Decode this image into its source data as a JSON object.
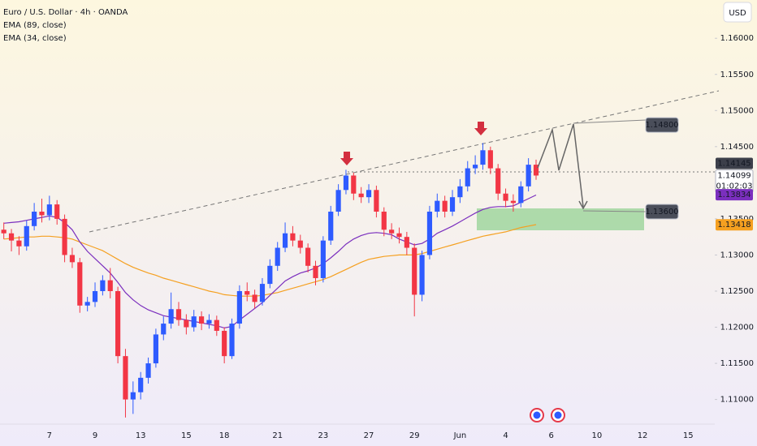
{
  "chart_data": {
    "type": "candlestick",
    "title": "Euro / U.S. Dollar · 4h · OANDA",
    "currency": "USD",
    "up_color": "#2e5bff",
    "down_color": "#f23645",
    "categories": [
      null,
      null,
      null,
      null,
      null,
      null,
      "7",
      null,
      null,
      null,
      null,
      null,
      "9",
      null,
      null,
      null,
      null,
      null,
      "13",
      null,
      null,
      null,
      null,
      null,
      "15",
      null,
      null,
      null,
      null,
      "18",
      null,
      null,
      null,
      null,
      null,
      null,
      "21",
      null,
      null,
      null,
      null,
      null,
      "23",
      null,
      null,
      null,
      null,
      null,
      "27",
      null,
      null,
      null,
      null,
      null,
      "29",
      null,
      null,
      null,
      null,
      null,
      "Jun",
      null,
      null,
      null,
      null,
      null,
      "4",
      null,
      null,
      null,
      null,
      null,
      "6",
      null,
      null,
      null,
      null,
      null,
      "10",
      null,
      null,
      null,
      null,
      null,
      "12",
      null,
      null,
      null,
      null,
      null,
      "15",
      null,
      null,
      null
    ],
    "open": [
      1.1335,
      1.133,
      1.132,
      1.1312,
      1.134,
      1.136,
      1.1355,
      1.137,
      1.135,
      1.13,
      1.129,
      1.123,
      1.1235,
      1.125,
      1.1265,
      1.125,
      1.116,
      1.11,
      1.111,
      1.113,
      1.115,
      1.119,
      1.1205,
      1.1225,
      1.121,
      1.12,
      1.1215,
      1.1205,
      1.121,
      1.1195,
      1.116,
      1.1205,
      1.125,
      1.1245,
      1.1235,
      1.126,
      1.1285,
      1.131,
      1.133,
      1.132,
      1.131,
      1.1285,
      1.1268,
      1.132,
      1.136,
      1.139,
      1.141,
      1.1385,
      1.138,
      1.139,
      1.136,
      1.1335,
      1.133,
      1.1325,
      1.131,
      1.1245,
      1.13,
      1.136,
      1.1375,
      1.136,
      1.138,
      1.1395,
      1.142,
      1.1425,
      1.1445,
      1.142,
      1.1385,
      1.1375,
      1.1372,
      1.1395,
      1.1425,
      null,
      null,
      null,
      null,
      null,
      null,
      null,
      null,
      null,
      null,
      null,
      null,
      null,
      null,
      null,
      null,
      null,
      null,
      null,
      null,
      null,
      null,
      null
    ],
    "high": [
      1.1345,
      1.1336,
      1.1326,
      1.1348,
      1.1372,
      1.1378,
      1.1382,
      1.1376,
      1.1356,
      1.131,
      1.1296,
      1.1242,
      1.1262,
      1.1272,
      1.1282,
      1.1256,
      1.117,
      1.1125,
      1.1138,
      1.1158,
      1.1198,
      1.1215,
      1.1248,
      1.1235,
      1.1218,
      1.1224,
      1.1222,
      1.1218,
      1.1216,
      1.12,
      1.1212,
      1.1258,
      1.1262,
      1.1252,
      1.1268,
      1.1294,
      1.1318,
      1.1345,
      1.134,
      1.1328,
      1.1316,
      1.1292,
      1.1326,
      1.1368,
      1.1398,
      1.1418,
      1.1414,
      1.1394,
      1.1398,
      1.1396,
      1.1366,
      1.1344,
      1.1338,
      1.1332,
      1.1316,
      1.1306,
      1.1368,
      1.1385,
      1.1382,
      1.139,
      1.1405,
      1.143,
      1.1438,
      1.1455,
      1.145,
      1.1426,
      1.1392,
      1.1384,
      1.1402,
      1.1434,
      1.1432,
      null,
      null,
      null,
      null,
      null,
      null,
      null,
      null,
      null,
      null,
      null,
      null,
      null,
      null,
      null,
      null,
      null,
      null,
      null,
      null,
      null,
      null,
      null
    ],
    "low": [
      1.1322,
      1.1305,
      1.13,
      1.1306,
      1.1334,
      1.1345,
      1.1348,
      1.1342,
      1.129,
      1.1282,
      1.122,
      1.1222,
      1.1228,
      1.1244,
      1.124,
      1.115,
      1.1075,
      1.108,
      1.11,
      1.1122,
      1.1144,
      1.1182,
      1.1198,
      1.1202,
      1.119,
      1.1194,
      1.1196,
      1.1198,
      1.1188,
      1.115,
      1.1156,
      1.1198,
      1.1236,
      1.1226,
      1.123,
      1.1254,
      1.1278,
      1.1304,
      1.1312,
      1.1302,
      1.1276,
      1.1258,
      1.1262,
      1.1314,
      1.1354,
      1.1384,
      1.1376,
      1.1372,
      1.1372,
      1.1352,
      1.1326,
      1.1322,
      1.1316,
      1.13,
      1.1215,
      1.1236,
      1.1294,
      1.1352,
      1.1352,
      1.1354,
      1.1372,
      1.1388,
      1.1412,
      1.1418,
      1.1412,
      1.1376,
      1.1366,
      1.136,
      1.1366,
      1.1388,
      1.1404,
      null,
      null,
      null,
      null,
      null,
      null,
      null,
      null,
      null,
      null,
      null,
      null,
      null,
      null,
      null,
      null,
      null,
      null,
      null,
      null,
      null,
      null,
      null
    ],
    "close": [
      1.133,
      1.132,
      1.1312,
      1.134,
      1.136,
      1.1355,
      1.137,
      1.135,
      1.13,
      1.129,
      1.123,
      1.1235,
      1.125,
      1.1265,
      1.125,
      1.116,
      1.11,
      1.111,
      1.113,
      1.115,
      1.119,
      1.1205,
      1.1225,
      1.121,
      1.12,
      1.1215,
      1.1205,
      1.121,
      1.1195,
      1.116,
      1.1205,
      1.125,
      1.1245,
      1.1235,
      1.126,
      1.1285,
      1.131,
      1.133,
      1.132,
      1.131,
      1.1285,
      1.1268,
      1.132,
      1.136,
      1.139,
      1.141,
      1.1385,
      1.138,
      1.139,
      1.136,
      1.1335,
      1.133,
      1.1325,
      1.131,
      1.1245,
      1.13,
      1.136,
      1.1375,
      1.136,
      1.138,
      1.1395,
      1.142,
      1.1425,
      1.1445,
      1.142,
      1.1385,
      1.1375,
      1.1372,
      1.1395,
      1.1425,
      1.141,
      null,
      null,
      null,
      null,
      null,
      null,
      null,
      null,
      null,
      null,
      null,
      null,
      null,
      null,
      null,
      null,
      null,
      null,
      null,
      null,
      null,
      null,
      null
    ],
    "series": [
      {
        "name": "EMA (89, close)",
        "color": "#f5a020",
        "values": [
          1.1322,
          1.1323,
          1.1324,
          1.1325,
          1.1325,
          1.1326,
          1.1326,
          1.1325,
          1.1324,
          1.1322,
          1.1318,
          1.1314,
          1.131,
          1.1306,
          1.13,
          1.1294,
          1.1288,
          1.1283,
          1.1279,
          1.1275,
          1.1272,
          1.1268,
          1.1265,
          1.1262,
          1.1259,
          1.1256,
          1.1253,
          1.125,
          1.1248,
          1.1245,
          1.1244,
          1.1243,
          1.1243,
          1.1243,
          1.1244,
          1.1246,
          1.1248,
          1.1251,
          1.1254,
          1.1257,
          1.126,
          1.1263,
          1.1266,
          1.127,
          1.1275,
          1.128,
          1.1285,
          1.129,
          1.1294,
          1.1296,
          1.1298,
          1.1299,
          1.13,
          1.13,
          1.13,
          1.1302,
          1.1305,
          1.1308,
          1.1311,
          1.1314,
          1.1317,
          1.132,
          1.1323,
          1.1326,
          1.1328,
          1.133,
          1.1332,
          1.1335,
          1.1338,
          1.134,
          1.1342,
          null,
          null,
          null,
          null,
          null,
          null,
          null,
          null,
          null,
          null,
          null,
          null,
          null,
          null,
          null,
          null,
          null,
          null,
          null,
          null,
          null,
          null,
          null
        ]
      },
      {
        "name": "EMA (34, close)",
        "color": "#7b2fbe",
        "values": [
          1.1344,
          1.1345,
          1.1346,
          1.1348,
          1.135,
          1.1352,
          1.1354,
          1.1352,
          1.1345,
          1.1335,
          1.1318,
          1.1305,
          1.1295,
          1.1285,
          1.1275,
          1.1262,
          1.1248,
          1.1238,
          1.123,
          1.1224,
          1.122,
          1.1216,
          1.1214,
          1.1212,
          1.121,
          1.1208,
          1.1206,
          1.1204,
          1.1202,
          1.1199,
          1.1201,
          1.121,
          1.1218,
          1.1226,
          1.1234,
          1.1244,
          1.1254,
          1.1264,
          1.127,
          1.1275,
          1.1278,
          1.1282,
          1.1288,
          1.1296,
          1.1305,
          1.1315,
          1.1322,
          1.1327,
          1.133,
          1.1331,
          1.133,
          1.1328,
          1.1322,
          1.1318,
          1.1314,
          1.1316,
          1.1322,
          1.133,
          1.1335,
          1.134,
          1.1346,
          1.1352,
          1.1358,
          1.1363,
          1.1366,
          1.1367,
          1.1367,
          1.1368,
          1.1373,
          1.1378,
          1.1383,
          null,
          null,
          null,
          null,
          null,
          null,
          null,
          null,
          null,
          null,
          null,
          null,
          null,
          null,
          null,
          null,
          null,
          null,
          null,
          null,
          null,
          null,
          null
        ]
      }
    ],
    "ylim": [
      1.1067,
      1.1653
    ],
    "yticks": [
      {
        "value": 1.16,
        "label": "1.16000"
      },
      {
        "value": 1.155,
        "label": "1.15500"
      },
      {
        "value": 1.15,
        "label": "1.15000"
      },
      {
        "value": 1.145,
        "label": "1.14500"
      },
      {
        "value": 1.135,
        "label": "1.13500"
      },
      {
        "value": 1.13,
        "label": "1.13000"
      },
      {
        "value": 1.125,
        "label": "1.12500"
      },
      {
        "value": 1.12,
        "label": "1.12000"
      },
      {
        "value": 1.115,
        "label": "1.11500"
      },
      {
        "value": 1.11,
        "label": "1.11000"
      }
    ],
    "price_tags": [
      {
        "value": 1.14145,
        "label": "1.14145",
        "color": "#3c3f4a"
      },
      {
        "value": 1.14099,
        "label": "1.14099",
        "color": "#ffffff"
      },
      {
        "value": 1.13834,
        "label": "1.13834",
        "color": "#7b2fbe"
      },
      {
        "value": 1.13418,
        "label": "1.13418",
        "color": "#f5a020"
      }
    ],
    "countdown": "01:02:03",
    "levels": [
      {
        "value": 1.148,
        "label": "1.14800"
      },
      {
        "value": 1.136,
        "label": "1.13600"
      }
    ]
  }
}
